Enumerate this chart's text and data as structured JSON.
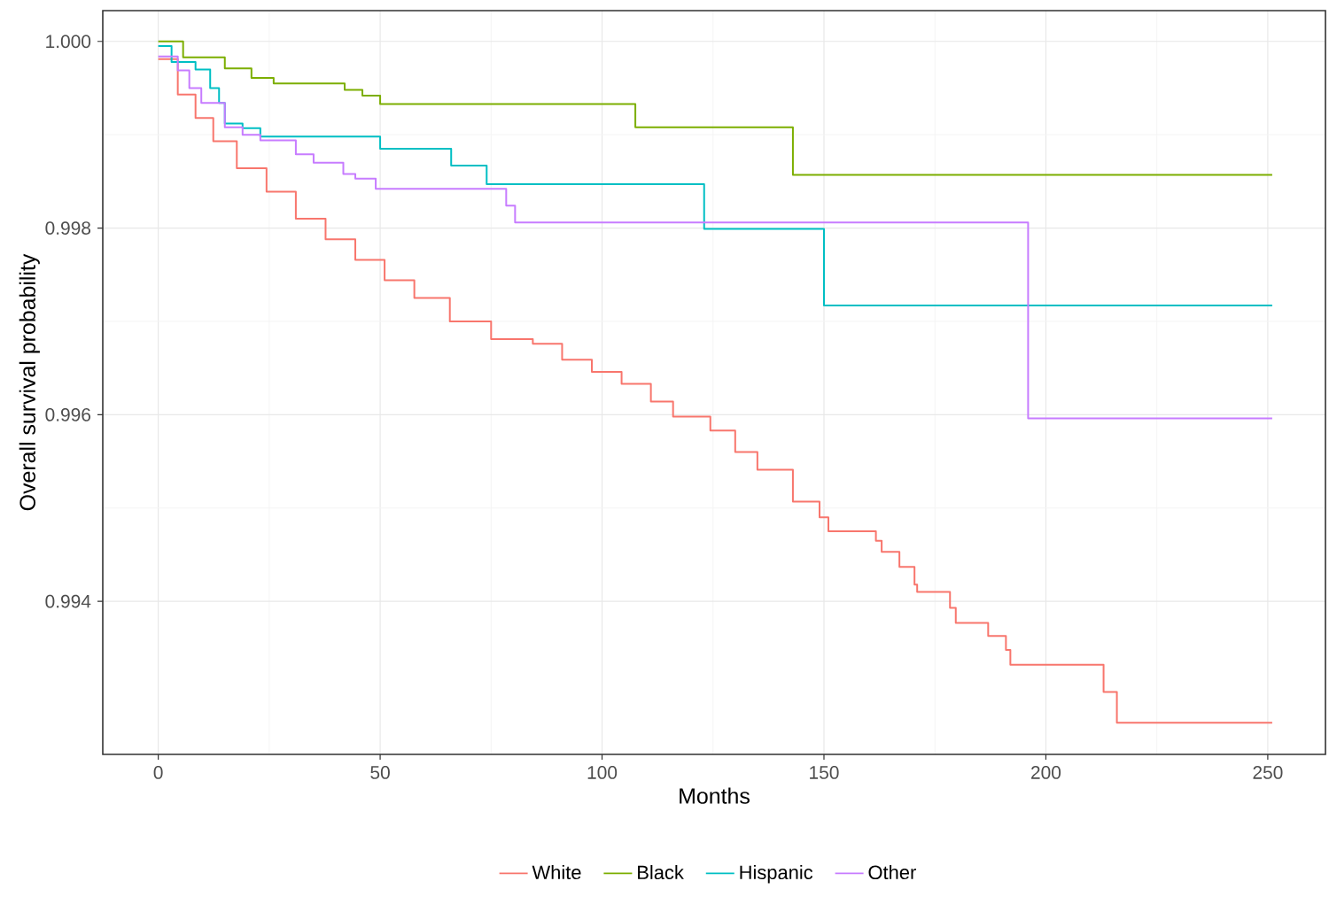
{
  "chart_data": {
    "type": "step",
    "xlabel": "Months",
    "ylabel": "Overall survival probability",
    "xlim": [
      -12.5,
      263
    ],
    "ylim": [
      0.99236,
      1.00033
    ],
    "xticks": [
      0,
      50,
      100,
      150,
      200,
      250
    ],
    "yticks": [
      {
        "value": 0.994,
        "label": "0.994"
      },
      {
        "value": 0.996,
        "label": "0.996"
      },
      {
        "value": 0.998,
        "label": "0.998"
      },
      {
        "value": 1.0,
        "label": "1.000"
      }
    ],
    "grid": true,
    "legend": "bottom",
    "marker": "none",
    "line_style": "solid",
    "series": [
      {
        "name": "White",
        "color": "#f8766d",
        "x": [
          0,
          4.4,
          8.4,
          12.4,
          17.7,
          24.4,
          31,
          37.7,
          44.4,
          51,
          57.7,
          65.7,
          75,
          84.4,
          91,
          97.7,
          104.4,
          111,
          116,
          124.4,
          130,
          135,
          143,
          149,
          151,
          161.7,
          163,
          167,
          170.4,
          171,
          178.4,
          179.7,
          187,
          191,
          192,
          213,
          216,
          251
        ],
        "values": [
          0.99981,
          0.99943,
          0.99918,
          0.99893,
          0.99864,
          0.99839,
          0.9981,
          0.99788,
          0.99766,
          0.99744,
          0.99725,
          0.997,
          0.99681,
          0.99676,
          0.99659,
          0.99646,
          0.99633,
          0.99614,
          0.99598,
          0.99583,
          0.9956,
          0.99541,
          0.99507,
          0.9949,
          0.99475,
          0.99465,
          0.99453,
          0.99437,
          0.99418,
          0.9941,
          0.99393,
          0.99377,
          0.99363,
          0.99348,
          0.99332,
          0.99303,
          0.9927,
          0.9927
        ]
      },
      {
        "name": "Black",
        "color": "#7cae00",
        "x": [
          0,
          5.6,
          15,
          21,
          26,
          42,
          46,
          50,
          107.5,
          143,
          251
        ],
        "values": [
          1.0,
          0.99983,
          0.99971,
          0.99961,
          0.99955,
          0.99948,
          0.99942,
          0.99933,
          0.99908,
          0.99857,
          0.99857
        ]
      },
      {
        "name": "Hispanic",
        "color": "#00bfc4",
        "x": [
          0,
          3,
          8.4,
          11.7,
          13.7,
          15,
          19,
          23,
          50,
          66,
          74,
          123,
          150,
          251
        ],
        "values": [
          0.99995,
          0.99978,
          0.9997,
          0.9995,
          0.99934,
          0.99912,
          0.99907,
          0.99898,
          0.99885,
          0.99867,
          0.99847,
          0.99799,
          0.99717,
          0.99717
        ]
      },
      {
        "name": "Other",
        "color": "#c77cff",
        "x": [
          0,
          4.4,
          7,
          9.7,
          15,
          19,
          23,
          31,
          35,
          41.7,
          44.4,
          49,
          78.4,
          80.4,
          196,
          251
        ],
        "values": [
          0.99984,
          0.99969,
          0.9995,
          0.99934,
          0.99908,
          0.999,
          0.99894,
          0.99879,
          0.9987,
          0.99858,
          0.99853,
          0.99842,
          0.99824,
          0.99806,
          0.99596,
          0.99596
        ]
      }
    ]
  }
}
